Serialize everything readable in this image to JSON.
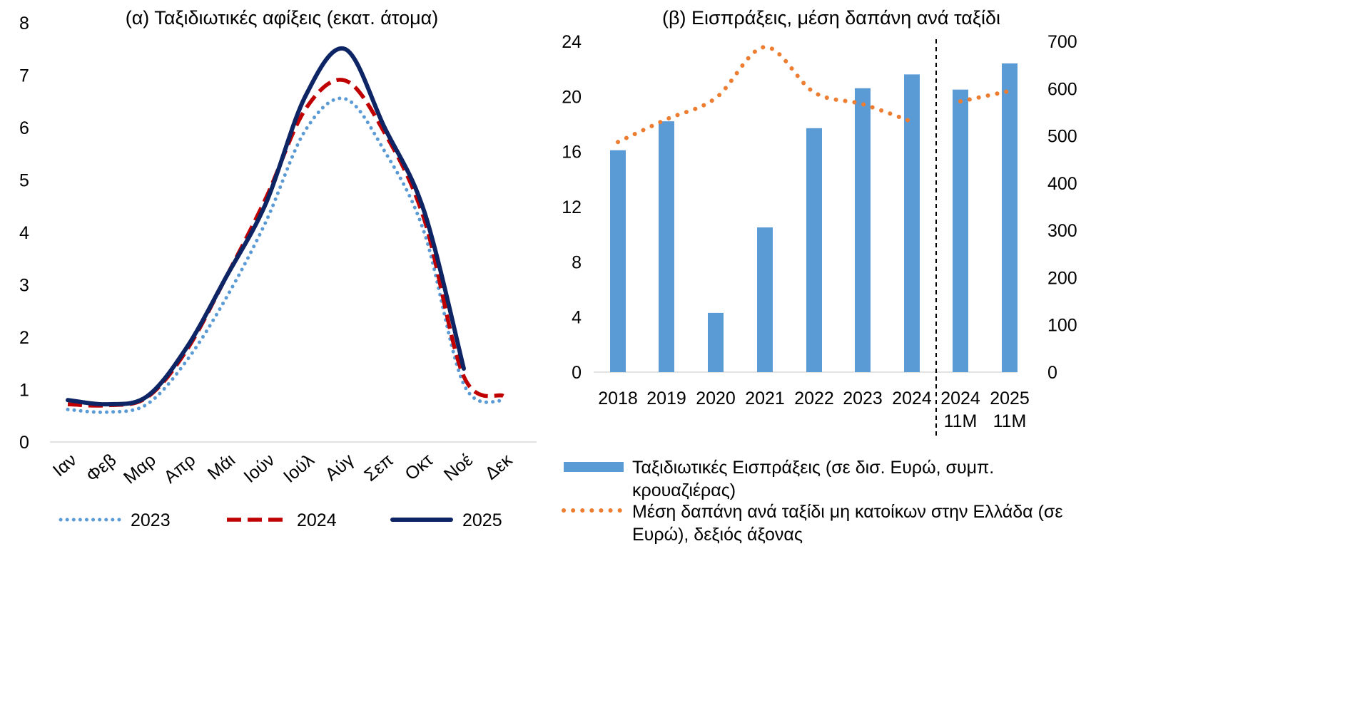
{
  "chart_data": [
    {
      "type": "line",
      "title": "(α) Ταξιδιωτικές αφίξεις (εκατ. άτομα)",
      "categories": [
        "Ιαν",
        "Φεβ",
        "Μαρ",
        "Απρ",
        "Μάι",
        "Ιούν",
        "Ιούλ",
        "Αύγ",
        "Σεπ",
        "Οκτ",
        "Νοέ",
        "Δεκ"
      ],
      "ylim": [
        0,
        8
      ],
      "yticks": [
        "0",
        "1",
        "2",
        "3",
        "4",
        "5",
        "6",
        "7",
        "8"
      ],
      "legend_position": "bottom",
      "series": [
        {
          "name": "2023",
          "style": "dotted",
          "color": "#5B9BD5",
          "values": [
            0.62,
            0.57,
            0.72,
            1.55,
            2.75,
            4.2,
            5.95,
            6.55,
            5.55,
            4.0,
            1.1,
            0.78
          ]
        },
        {
          "name": "2024",
          "style": "dashed",
          "color": "#C00000",
          "values": [
            0.72,
            0.7,
            0.85,
            1.75,
            3.15,
            4.65,
            6.35,
            6.9,
            5.9,
            4.25,
            1.25,
            0.88
          ]
        },
        {
          "name": "2025",
          "style": "solid",
          "color": "#0E2565",
          "values": [
            0.8,
            0.72,
            0.87,
            1.8,
            3.15,
            4.55,
            6.6,
            7.5,
            6.0,
            4.4,
            1.4,
            null
          ]
        }
      ]
    },
    {
      "type": "bar+line",
      "title": "(β) Εισπράξεις, μέση δαπάνη ανά ταξίδι",
      "categories": [
        "2018",
        "2019",
        "2020",
        "2021",
        "2022",
        "2023",
        "2024",
        "2024\n11M",
        "2025\n11M"
      ],
      "category_lines": [
        [
          "2018"
        ],
        [
          "2019"
        ],
        [
          "2020"
        ],
        [
          "2021"
        ],
        [
          "2022"
        ],
        [
          "2023"
        ],
        [
          "2024"
        ],
        [
          "2024",
          "11M"
        ],
        [
          "2025",
          "11M"
        ]
      ],
      "ylim_left": [
        0,
        24
      ],
      "yticks_left": [
        "0",
        "4",
        "8",
        "12",
        "16",
        "20",
        "24"
      ],
      "ylim_right": [
        0,
        700
      ],
      "yticks_right": [
        "0",
        "100",
        "200",
        "300",
        "400",
        "500",
        "600",
        "700"
      ],
      "separator_after_index": 6,
      "legend_position": "bottom",
      "bars": {
        "name": "Ταξιδιωτικές Εισπράξεις (σε δισ. Ευρώ, συμπ. κρουαζιέρας)",
        "legend_lines": [
          "Ταξιδιωτικές Εισπράξεις (σε δισ. Ευρώ, συμπ.",
          "κρουαζιέρας)"
        ],
        "color": "#5B9BD5",
        "values": [
          16.1,
          18.2,
          4.3,
          10.5,
          17.7,
          20.6,
          21.6,
          20.5,
          22.4
        ]
      },
      "line": {
        "name": "Μέση δαπάνη ανά ταξίδι μη κατοίκων στην Ελλάδα (σε Ευρώ), δεξιός άξονας",
        "legend_lines": [
          "Μέση δαπάνη ανά ταξίδι μη κατοίκων στην Ελλάδα (σε",
          "Ευρώ), δεξιός άξονας"
        ],
        "color": "#ED7D31",
        "style": "dotted",
        "values": [
          487,
          535,
          580,
          688,
          592,
          567,
          530,
          573,
          595
        ],
        "segments": [
          [
            0,
            6
          ],
          [
            7,
            8
          ]
        ]
      }
    }
  ]
}
